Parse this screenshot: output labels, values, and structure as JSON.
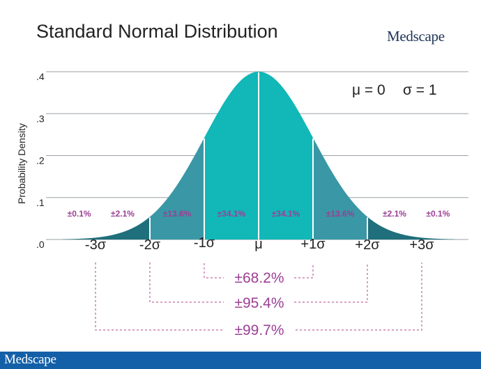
{
  "page": {
    "title": "Standard Normal Distribution",
    "logo_text": "Medscape",
    "footer_logo_text": "Medscape"
  },
  "colors": {
    "center": "#12b7b7",
    "one_to_two": "#3a97a5",
    "two_to_three": "#1f6f7c",
    "tail": "#1f6f7c",
    "percent_text": "#9b3f95",
    "bracket": "#b5428f",
    "gridline": "#9aa0a6",
    "footer": "#1460a8"
  },
  "chart_data": {
    "type": "area",
    "title": "Standard Normal Distribution",
    "xlabel": "",
    "ylabel": "Probability Density",
    "ylim": [
      0,
      0.4
    ],
    "xlim": [
      -3.6,
      3.6
    ],
    "y_ticks": [
      {
        "value": 0.0,
        "label": ".0"
      },
      {
        "value": 0.1,
        "label": ".1"
      },
      {
        "value": 0.2,
        "label": ".2"
      },
      {
        "value": 0.3,
        "label": ".3"
      },
      {
        "value": 0.4,
        "label": ".4"
      }
    ],
    "x_ticks": [
      {
        "value": -3,
        "label": "-3σ"
      },
      {
        "value": -2,
        "label": "-2σ"
      },
      {
        "value": -1,
        "label": "-1σ"
      },
      {
        "value": 0,
        "label": "μ"
      },
      {
        "value": 1,
        "label": "+1σ"
      },
      {
        "value": 2,
        "label": "+2σ"
      },
      {
        "value": 3,
        "label": "+3σ"
      }
    ],
    "grid": true,
    "params": {
      "mu_label": "μ = 0",
      "sigma_label": "σ = 1",
      "mu": 0,
      "sigma": 1
    },
    "regions": [
      {
        "from": -3.6,
        "to": -3,
        "label": "±0.1%",
        "label_x": -3.3,
        "color": "tail"
      },
      {
        "from": -3,
        "to": -2,
        "label": "±2.1%",
        "label_x": -2.5,
        "color": "two_to_three"
      },
      {
        "from": -2,
        "to": -1,
        "label": "±13.6%",
        "label_x": -1.5,
        "color": "one_to_two"
      },
      {
        "from": -1,
        "to": 0,
        "label": "±34.1%",
        "label_x": -0.5,
        "color": "center"
      },
      {
        "from": 0,
        "to": 1,
        "label": "±34.1%",
        "label_x": 0.5,
        "color": "center"
      },
      {
        "from": 1,
        "to": 2,
        "label": "±13.6%",
        "label_x": 1.5,
        "color": "one_to_two"
      },
      {
        "from": 2,
        "to": 3,
        "label": "±2.1%",
        "label_x": 2.5,
        "color": "two_to_three"
      },
      {
        "from": 3,
        "to": 3.6,
        "label": "±0.1%",
        "label_x": 3.3,
        "color": "tail"
      }
    ],
    "brackets": [
      {
        "sigma": 1,
        "label": "±68.2%"
      },
      {
        "sigma": 2,
        "label": "±95.4%"
      },
      {
        "sigma": 3,
        "label": "±99.7%"
      }
    ]
  }
}
